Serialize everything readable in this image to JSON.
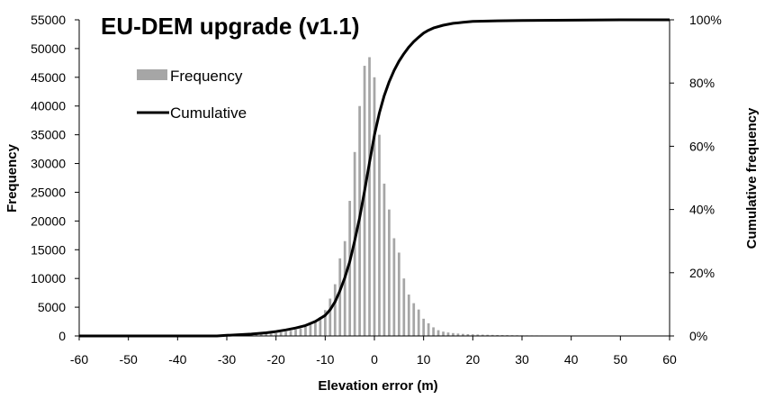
{
  "chart_data": {
    "type": "bar",
    "title": "EU-DEM upgrade (v1.1)",
    "xlabel": "Elevation error (m)",
    "ylabel": "Frequency",
    "y2label": "Cumulative frequency",
    "xlim": [
      -60,
      60
    ],
    "ylim": [
      0,
      55000
    ],
    "y2lim": [
      0,
      100
    ],
    "x_ticks": [
      "-60",
      "-50",
      "-40",
      "-30",
      "-20",
      "-10",
      "0",
      "10",
      "20",
      "30",
      "40",
      "50",
      "60"
    ],
    "y_ticks": [
      "0",
      "5000",
      "10000",
      "15000",
      "20000",
      "25000",
      "30000",
      "35000",
      "40000",
      "45000",
      "50000",
      "55000"
    ],
    "y2_ticks": [
      "0%",
      "20%",
      "40%",
      "60%",
      "80%",
      "100%"
    ],
    "grid": false,
    "legend_position": "top-left",
    "legend": [
      {
        "label": "Frequency",
        "kind": "bar",
        "color": "#a6a6a6"
      },
      {
        "label": "Cumulative",
        "kind": "line",
        "color": "#000000"
      }
    ],
    "series": [
      {
        "name": "Frequency",
        "type": "bar",
        "axis": "left",
        "color": "#a6a6a6",
        "x": [
          -32,
          -31,
          -30,
          -29,
          -28,
          -27,
          -26,
          -25,
          -24,
          -23,
          -22,
          -21,
          -20,
          -19,
          -18,
          -17,
          -16,
          -15,
          -14,
          -13,
          -12,
          -11,
          -10,
          -9,
          -8,
          -7,
          -6,
          -5,
          -4,
          -3,
          -2,
          -1,
          0,
          1,
          2,
          3,
          4,
          5,
          6,
          7,
          8,
          9,
          10,
          11,
          12,
          13,
          14,
          15,
          16,
          17,
          18,
          19,
          20,
          21,
          22,
          23,
          24,
          25,
          26,
          27,
          28,
          29,
          30,
          31,
          32,
          33,
          34,
          35,
          36,
          37,
          38,
          39,
          40,
          41,
          42,
          43,
          44,
          45,
          46,
          47,
          48,
          49,
          50,
          51,
          52,
          53,
          54,
          55,
          56,
          57,
          58,
          59
        ],
        "values": [
          50,
          60,
          70,
          80,
          100,
          120,
          150,
          180,
          220,
          270,
          330,
          400,
          480,
          600,
          750,
          900,
          1100,
          1300,
          1600,
          2000,
          2500,
          3300,
          4500,
          6500,
          9000,
          13500,
          16500,
          23500,
          32000,
          40000,
          47000,
          48500,
          45000,
          35000,
          26500,
          22000,
          17000,
          14500,
          10000,
          7200,
          5700,
          4600,
          3000,
          2200,
          1500,
          1000,
          750,
          600,
          500,
          420,
          360,
          320,
          280,
          250,
          220,
          200,
          180,
          160,
          150,
          140,
          130,
          120,
          110,
          100,
          95,
          90,
          85,
          80,
          75,
          70,
          65,
          60,
          58,
          55,
          52,
          50,
          48,
          46,
          44,
          42,
          40,
          38,
          36,
          34,
          32,
          30,
          28,
          26,
          24,
          22,
          20,
          18
        ]
      },
      {
        "name": "Cumulative",
        "type": "line",
        "axis": "right",
        "color": "#000000",
        "x": [
          -60,
          -50,
          -40,
          -32,
          -30,
          -25,
          -22,
          -20,
          -18,
          -16,
          -14,
          -12,
          -10,
          -9,
          -8,
          -7,
          -6,
          -5,
          -4,
          -3,
          -2,
          -1,
          0,
          1,
          2,
          3,
          4,
          5,
          6,
          7,
          8,
          9,
          10,
          11,
          12,
          14,
          16,
          18,
          20,
          25,
          30,
          40,
          50,
          60
        ],
        "values": [
          0,
          0,
          0,
          0,
          0.2,
          0.6,
          1.0,
          1.4,
          1.9,
          2.5,
          3.3,
          4.6,
          6.5,
          8.3,
          10.8,
          14.3,
          18.5,
          23.6,
          30.1,
          37.4,
          45.9,
          54.8,
          63.5,
          70.5,
          76.0,
          80.4,
          84.0,
          86.9,
          89.3,
          91.4,
          93.1,
          94.5,
          95.8,
          96.7,
          97.4,
          98.3,
          98.9,
          99.2,
          99.5,
          99.7,
          99.8,
          99.9,
          100,
          100
        ]
      }
    ]
  }
}
